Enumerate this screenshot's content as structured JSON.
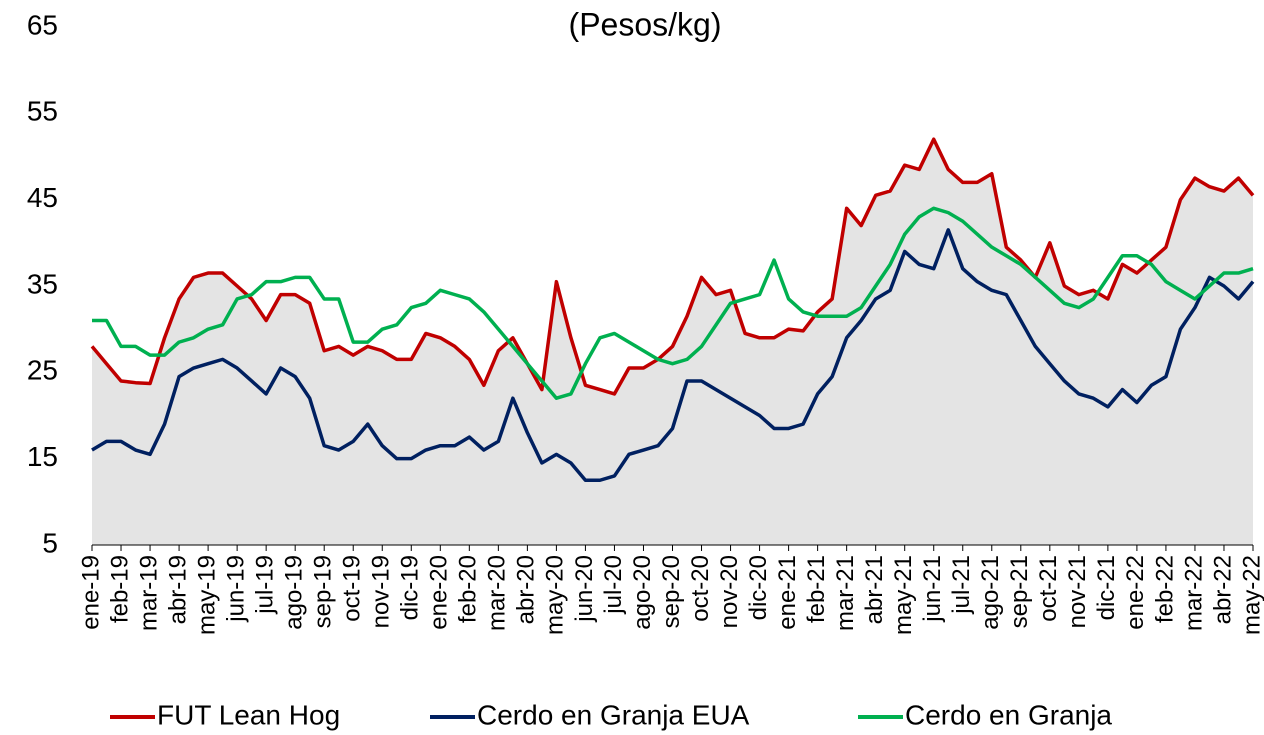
{
  "chart_data": {
    "type": "line",
    "title": "(Pesos/kg)",
    "categories": [
      "ene-19",
      null,
      "feb-19",
      null,
      "mar-19",
      null,
      "abr-19",
      null,
      "may-19",
      null,
      "jun-19",
      null,
      "jul-19",
      null,
      "ago-19",
      null,
      "sep-19",
      null,
      "oct-19",
      null,
      "nov-19",
      null,
      "dic-19",
      null,
      "ene-20",
      null,
      "feb-20",
      null,
      "mar-20",
      null,
      "abr-20",
      null,
      "may-20",
      null,
      "jun-20",
      null,
      "jul-20",
      null,
      "ago-20",
      null,
      "sep-20",
      null,
      "oct-20",
      null,
      "nov-20",
      null,
      "dic-20",
      null,
      "ene-21",
      null,
      "feb-21",
      null,
      "mar-21",
      null,
      "abr-21",
      null,
      "may-21",
      null,
      "jun-21",
      null,
      "jul-21",
      null,
      "ago-21",
      null,
      "sep-21",
      null,
      "oct-21",
      null,
      "nov-21",
      null,
      "dic-21",
      null,
      "ene-22",
      null,
      "feb-22",
      null,
      "mar-22",
      null,
      "abr-22",
      null,
      "may-22"
    ],
    "series": [
      {
        "name": "FUT Lean Hog",
        "color": "#c00000",
        "area_color": "#e4e4e4",
        "values": [
          28,
          26,
          24,
          23.8,
          23.7,
          29,
          33.5,
          36,
          36.5,
          36.5,
          35,
          33.5,
          31,
          34,
          34,
          33,
          27.5,
          28,
          27,
          28,
          27.5,
          26.5,
          26.5,
          29.5,
          29,
          28,
          26.5,
          23.5,
          27.5,
          29,
          26,
          23,
          35.5,
          29,
          23.5,
          23,
          22.5,
          25.5,
          25.5,
          26.5,
          28,
          31.5,
          36,
          34,
          34.5,
          29.5,
          29,
          29,
          30,
          29.8,
          32,
          33.5,
          44,
          42,
          45.5,
          46,
          49,
          48.5,
          52,
          48.5,
          47,
          47,
          48,
          39.5,
          38,
          36,
          40,
          35,
          34,
          34.5,
          33.5,
          37.5,
          36.5,
          38,
          39.5,
          45,
          47.5,
          46.5,
          46,
          47.5,
          45.5
        ]
      },
      {
        "name": "Cerdo en Granja EUA",
        "color": "#002060",
        "values": [
          16,
          17,
          17,
          16,
          15.5,
          19,
          24.5,
          25.5,
          26,
          26.5,
          25.5,
          24,
          22.5,
          25.5,
          24.5,
          22,
          16.5,
          16,
          17,
          19,
          16.5,
          15,
          15,
          16,
          16.5,
          16.5,
          17.5,
          16,
          17,
          22,
          18,
          14.5,
          15.5,
          14.5,
          12.5,
          12.5,
          13,
          15.5,
          16,
          16.5,
          18.5,
          24,
          24,
          23,
          22,
          21,
          20,
          18.5,
          18.5,
          19,
          22.5,
          24.5,
          29,
          31,
          33.5,
          34.5,
          39,
          37.5,
          37,
          41.5,
          37,
          35.5,
          34.5,
          34,
          31,
          28,
          26,
          24,
          22.5,
          22,
          21,
          23,
          21.5,
          23.5,
          24.5,
          30,
          32.5,
          36,
          35,
          33.5,
          35.5
        ]
      },
      {
        "name": "Cerdo en Granja",
        "color": "#00b050",
        "values": [
          31,
          31,
          28,
          28,
          27,
          27,
          28.5,
          29,
          30,
          30.5,
          33.5,
          34,
          35.5,
          35.5,
          36,
          36,
          33.5,
          33.5,
          28.5,
          28.5,
          30,
          30.5,
          32.5,
          33,
          34.5,
          34,
          33.5,
          32,
          30,
          28,
          26,
          24,
          22,
          22.5,
          26,
          29,
          29.5,
          28.5,
          27.5,
          26.5,
          26,
          26.5,
          28,
          30.5,
          33,
          33.5,
          34,
          38,
          33.5,
          32,
          31.5,
          31.5,
          31.5,
          32.5,
          35,
          37.5,
          41,
          43,
          44,
          43.5,
          42.5,
          41,
          39.5,
          38.5,
          37.5,
          36,
          34.5,
          33,
          32.5,
          33.5,
          36,
          38.5,
          38.5,
          37.5,
          35.5,
          34.5,
          33.5,
          35,
          36.5,
          36.5,
          37
        ]
      }
    ],
    "ylim": [
      5,
      65
    ],
    "yticks": [
      5,
      15,
      25,
      35,
      45,
      55,
      65
    ]
  }
}
